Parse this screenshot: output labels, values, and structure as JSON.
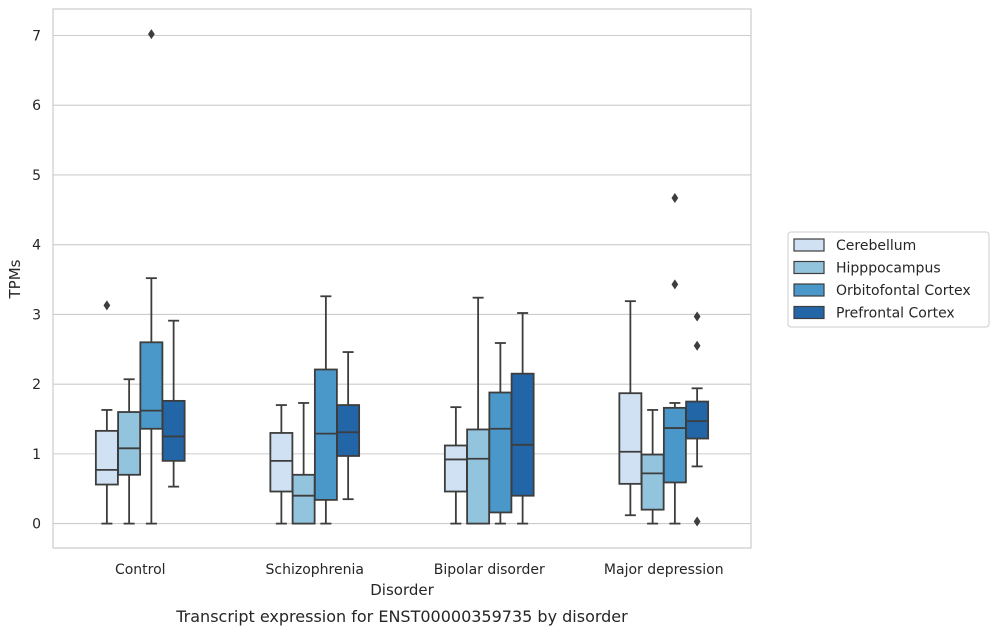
{
  "chart_data": {
    "type": "box",
    "title": "Transcript expression for ENST00000359735 by disorder",
    "xlabel": "Disorder",
    "ylabel": "TPMs",
    "ylim": [
      -0.35,
      7.38
    ],
    "yticks": [
      0,
      1,
      2,
      3,
      4,
      5,
      6,
      7
    ],
    "grid": "horizontal",
    "legend_position": "right",
    "categories": [
      "Control",
      "Schizophrenia",
      "Bipolar disorder",
      "Major depression"
    ],
    "series": [
      {
        "name": "Cerebellum",
        "color": "#cfe1f2",
        "boxes": [
          {
            "whisker_low": 0,
            "q1": 0.56,
            "median": 0.77,
            "q3": 1.33,
            "whisker_high": 1.63,
            "outliers": [
              3.13
            ]
          },
          {
            "whisker_low": 0,
            "q1": 0.46,
            "median": 0.9,
            "q3": 1.3,
            "whisker_high": 1.7,
            "outliers": []
          },
          {
            "whisker_low": 0,
            "q1": 0.46,
            "median": 0.92,
            "q3": 1.12,
            "whisker_high": 1.67,
            "outliers": []
          },
          {
            "whisker_low": 0.12,
            "q1": 0.57,
            "median": 1.03,
            "q3": 1.87,
            "whisker_high": 3.19,
            "outliers": []
          }
        ]
      },
      {
        "name": "Hipppocampus",
        "color": "#93c4de",
        "boxes": [
          {
            "whisker_low": 0,
            "q1": 0.7,
            "median": 1.08,
            "q3": 1.6,
            "whisker_high": 2.07,
            "outliers": []
          },
          {
            "whisker_low": 0,
            "q1": 0,
            "median": 0.4,
            "q3": 0.7,
            "whisker_high": 1.73,
            "outliers": []
          },
          {
            "whisker_low": 0,
            "q1": 0,
            "median": 0.93,
            "q3": 1.35,
            "whisker_high": 3.24,
            "outliers": []
          },
          {
            "whisker_low": 0,
            "q1": 0.2,
            "median": 0.72,
            "q3": 0.99,
            "whisker_high": 1.63,
            "outliers": []
          }
        ]
      },
      {
        "name": "Orbitofontal Cortex",
        "color": "#4a98c9",
        "boxes": [
          {
            "whisker_low": 0,
            "q1": 1.36,
            "median": 1.62,
            "q3": 2.6,
            "whisker_high": 3.52,
            "outliers": [
              7.02
            ]
          },
          {
            "whisker_low": 0,
            "q1": 0.34,
            "median": 1.29,
            "q3": 2.21,
            "whisker_high": 3.26,
            "outliers": []
          },
          {
            "whisker_low": 0,
            "q1": 0.16,
            "median": 1.36,
            "q3": 1.88,
            "whisker_high": 2.59,
            "outliers": []
          },
          {
            "whisker_low": 0,
            "q1": 0.59,
            "median": 1.37,
            "q3": 1.66,
            "whisker_high": 1.73,
            "outliers": [
              4.67,
              3.43
            ]
          }
        ]
      },
      {
        "name": "Prefrontal Cortex",
        "color": "#2366a8",
        "boxes": [
          {
            "whisker_low": 0.53,
            "q1": 0.9,
            "median": 1.25,
            "q3": 1.76,
            "whisker_high": 2.91,
            "outliers": []
          },
          {
            "whisker_low": 0.35,
            "q1": 0.97,
            "median": 1.31,
            "q3": 1.7,
            "whisker_high": 2.46,
            "outliers": []
          },
          {
            "whisker_low": 0,
            "q1": 0.4,
            "median": 1.13,
            "q3": 2.15,
            "whisker_high": 3.02,
            "outliers": []
          },
          {
            "whisker_low": 0.82,
            "q1": 1.22,
            "median": 1.47,
            "q3": 1.75,
            "whisker_high": 1.94,
            "outliers": [
              2.97,
              2.55,
              0.03
            ]
          }
        ]
      }
    ]
  }
}
